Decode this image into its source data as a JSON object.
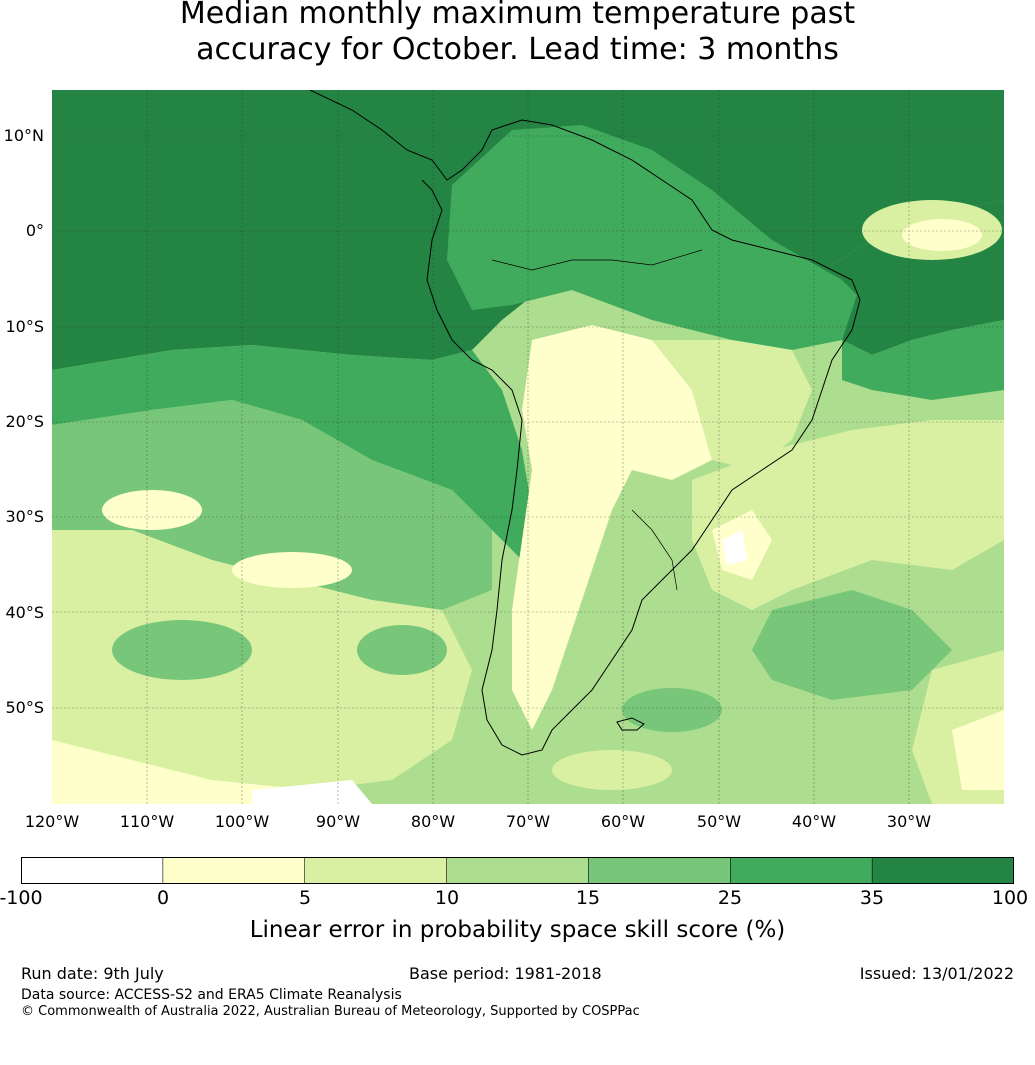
{
  "title_line1": "Median monthly maximum temperature past",
  "title_line2": "accuracy for October. Lead time: 3 months",
  "lat_labels": [
    "10°N",
    "0°",
    "10°S",
    "20°S",
    "30°S",
    "40°S",
    "50°S"
  ],
  "lon_labels": [
    "120°W",
    "110°W",
    "100°W",
    "90°W",
    "80°W",
    "70°W",
    "60°W",
    "50°W",
    "40°W",
    "30°W"
  ],
  "colorbar": {
    "ticks": [
      "-100",
      "0",
      "5",
      "10",
      "15",
      "25",
      "35",
      "100"
    ],
    "colors": [
      "#ffffff",
      "#ffffcc",
      "#d9f0a3",
      "#addd8e",
      "#78c679",
      "#41ab5d",
      "#238443"
    ],
    "label": "Linear error in probability space skill score (%)"
  },
  "footer": {
    "run_date": "Run date: 9th July",
    "base_period": "Base period: 1981-2018",
    "issued": "Issued: 13/01/2022",
    "data_source": "Data source: ACCESS-S2 and ERA5 Climate Reanalysis",
    "copyright": "© Commonwealth of Australia 2022, Australian Bureau of Meteorology, Supported by COSPPac"
  }
}
